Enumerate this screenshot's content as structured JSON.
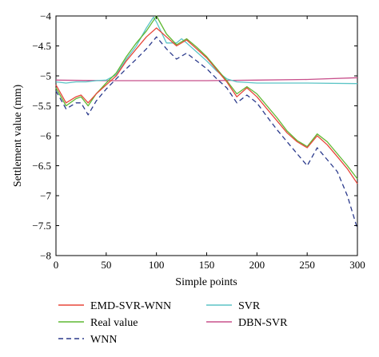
{
  "chart_data": {
    "type": "line",
    "title": "",
    "xlabel": "Simple points",
    "ylabel": "Settlement value (mm)",
    "xlim": [
      0,
      300
    ],
    "ylim": [
      -8,
      -4
    ],
    "xticks": [
      0,
      50,
      100,
      150,
      200,
      250,
      300
    ],
    "yticks": [
      -8,
      -7.5,
      -7,
      -6.5,
      -6,
      -5.5,
      -5,
      -4.5,
      -4
    ],
    "xtick_labels": [
      "0",
      "50",
      "100",
      "150",
      "200",
      "250",
      "300"
    ],
    "ytick_labels": [
      "−8",
      "−7.5",
      "−7",
      "−6.5",
      "−6",
      "−5.5",
      "−5",
      "−4.5",
      "−4"
    ],
    "grid": false,
    "legend_position": "below plot, two columns",
    "series": [
      {
        "name": "EMD-SVR-WNN",
        "color": "#e8473a",
        "dash": "solid",
        "x": [
          0,
          10,
          20,
          25,
          32,
          40,
          50,
          60,
          70,
          80,
          90,
          100,
          110,
          120,
          130,
          140,
          150,
          160,
          170,
          180,
          190,
          200,
          210,
          220,
          230,
          240,
          250,
          260,
          270,
          280,
          290,
          300
        ],
        "y": [
          -5.15,
          -5.45,
          -5.35,
          -5.32,
          -5.45,
          -5.3,
          -5.15,
          -5.0,
          -4.75,
          -4.55,
          -4.35,
          -4.2,
          -4.35,
          -4.5,
          -4.4,
          -4.55,
          -4.7,
          -4.9,
          -5.1,
          -5.35,
          -5.2,
          -5.35,
          -5.55,
          -5.75,
          -5.95,
          -6.1,
          -6.2,
          -6.0,
          -6.15,
          -6.35,
          -6.55,
          -6.8
        ]
      },
      {
        "name": "Real value",
        "color": "#5fb832",
        "dash": "solid",
        "x": [
          0,
          10,
          20,
          25,
          32,
          40,
          50,
          60,
          70,
          80,
          90,
          100,
          110,
          120,
          130,
          140,
          150,
          160,
          170,
          180,
          190,
          200,
          210,
          220,
          230,
          240,
          250,
          260,
          270,
          280,
          290,
          300
        ],
        "y": [
          -5.2,
          -5.5,
          -5.38,
          -5.35,
          -5.5,
          -5.3,
          -5.12,
          -4.95,
          -4.68,
          -4.45,
          -4.25,
          -4.0,
          -4.3,
          -4.48,
          -4.38,
          -4.52,
          -4.68,
          -4.88,
          -5.08,
          -5.3,
          -5.18,
          -5.3,
          -5.5,
          -5.7,
          -5.92,
          -6.08,
          -6.18,
          -5.97,
          -6.1,
          -6.3,
          -6.5,
          -6.72
        ]
      },
      {
        "name": "WNN",
        "color": "#2b3a8c",
        "dash": "dashed",
        "x": [
          0,
          10,
          20,
          25,
          32,
          40,
          50,
          60,
          70,
          80,
          90,
          100,
          110,
          120,
          130,
          140,
          150,
          160,
          170,
          180,
          190,
          200,
          210,
          220,
          230,
          240,
          250,
          260,
          270,
          280,
          290,
          300
        ],
        "y": [
          -5.25,
          -5.55,
          -5.45,
          -5.45,
          -5.65,
          -5.42,
          -5.22,
          -5.05,
          -4.88,
          -4.72,
          -4.55,
          -4.35,
          -4.55,
          -4.72,
          -4.62,
          -4.75,
          -4.88,
          -5.05,
          -5.2,
          -5.45,
          -5.32,
          -5.45,
          -5.68,
          -5.9,
          -6.1,
          -6.3,
          -6.5,
          -6.2,
          -6.4,
          -6.6,
          -7.0,
          -7.55
        ]
      },
      {
        "name": "SVR",
        "color": "#5bc4c6",
        "dash": "solid",
        "x": [
          0,
          10,
          20,
          30,
          40,
          50,
          60,
          70,
          80,
          90,
          97,
          100,
          110,
          120,
          125,
          130,
          140,
          150,
          160,
          170,
          180,
          200,
          220,
          250,
          300
        ],
        "y": [
          -5.1,
          -5.12,
          -5.1,
          -5.1,
          -5.08,
          -5.07,
          -4.98,
          -4.72,
          -4.5,
          -4.2,
          -4.02,
          -4.1,
          -4.45,
          -4.45,
          -4.38,
          -4.45,
          -4.6,
          -4.75,
          -4.92,
          -5.05,
          -5.1,
          -5.12,
          -5.12,
          -5.12,
          -5.13
        ]
      },
      {
        "name": "DBN-SVR",
        "color": "#c8508c",
        "dash": "solid",
        "x": [
          0,
          50,
          100,
          150,
          200,
          250,
          300
        ],
        "y": [
          -5.07,
          -5.08,
          -5.08,
          -5.08,
          -5.07,
          -5.06,
          -5.03
        ]
      }
    ]
  }
}
